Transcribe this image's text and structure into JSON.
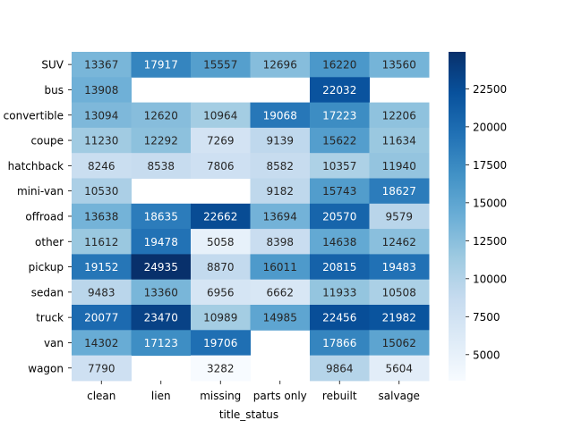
{
  "chart_data": {
    "type": "heatmap",
    "title": "",
    "xlabel": "title_status",
    "ylabel": "",
    "columns": [
      "clean",
      "lien",
      "missing",
      "parts only",
      "rebuilt",
      "salvage"
    ],
    "rows": [
      "SUV",
      "bus",
      "convertible",
      "coupe",
      "hatchback",
      "mini-van",
      "offroad",
      "other",
      "pickup",
      "sedan",
      "truck",
      "van",
      "wagon"
    ],
    "values": [
      [
        13367,
        17917,
        15557,
        12696,
        16220,
        13560
      ],
      [
        13908,
        null,
        null,
        null,
        22032,
        null
      ],
      [
        13094,
        12620,
        10964,
        19068,
        17223,
        12206
      ],
      [
        11230,
        12292,
        7269,
        9139,
        15622,
        11634
      ],
      [
        8246,
        8538,
        7806,
        8582,
        10357,
        11940
      ],
      [
        10530,
        null,
        null,
        9182,
        15743,
        18627
      ],
      [
        13638,
        18635,
        22662,
        13694,
        20570,
        9579
      ],
      [
        11612,
        19478,
        5058,
        8398,
        14638,
        12462
      ],
      [
        19152,
        24935,
        8870,
        16011,
        20815,
        19483
      ],
      [
        9483,
        13360,
        6956,
        6662,
        11933,
        10508
      ],
      [
        20077,
        23470,
        10989,
        14985,
        22456,
        21982
      ],
      [
        14302,
        17123,
        19706,
        null,
        17866,
        15062
      ],
      [
        7790,
        null,
        3282,
        null,
        9864,
        5604
      ]
    ],
    "colorbar": {
      "colormap": "Blues",
      "min": 3282,
      "max": 24935,
      "ticks": [
        5000,
        7500,
        10000,
        12500,
        15000,
        17500,
        20000,
        22500
      ]
    },
    "grid": false,
    "legend": "colorbar-right"
  }
}
